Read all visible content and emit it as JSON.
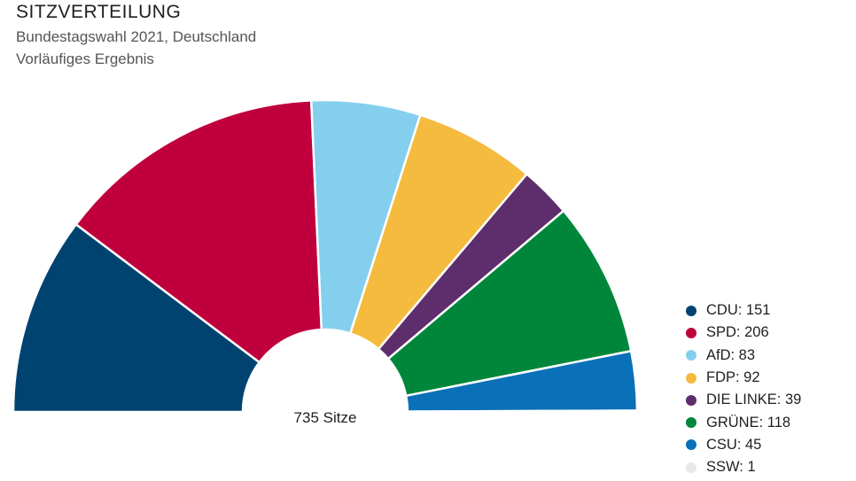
{
  "header": {
    "title": "SITZVERTEILUNG",
    "subtitle": "Bundestagswahl 2021, Deutschland",
    "note": "Vorläufiges Ergebnis"
  },
  "chart_data": {
    "type": "pie",
    "shape": "half-donut (parliament)",
    "title": "SITZVERTEILUNG",
    "subtitle": "Bundestagswahl 2021, Deutschland",
    "center_label": "735 Sitze",
    "total": 735,
    "legend_position": "bottom-right",
    "categories": [
      "CDU",
      "SPD",
      "AfD",
      "FDP",
      "DIE LINKE",
      "GRÜNE",
      "CSU",
      "SSW"
    ],
    "values": [
      151,
      206,
      83,
      92,
      39,
      118,
      45,
      1
    ],
    "colors": [
      "#004370",
      "#c0003c",
      "#85cfee",
      "#f5bb3e",
      "#5e2d6c",
      "#00863b",
      "#0a70b8",
      "#e8e8e8"
    ]
  },
  "legend": {
    "items": [
      {
        "label": "CDU: 151"
      },
      {
        "label": "SPD: 206"
      },
      {
        "label": "AfD: 83"
      },
      {
        "label": "FDP: 92"
      },
      {
        "label": "DIE LINKE: 39"
      },
      {
        "label": "GRÜNE: 118"
      },
      {
        "label": "CSU: 45"
      },
      {
        "label": "SSW: 1"
      }
    ]
  }
}
